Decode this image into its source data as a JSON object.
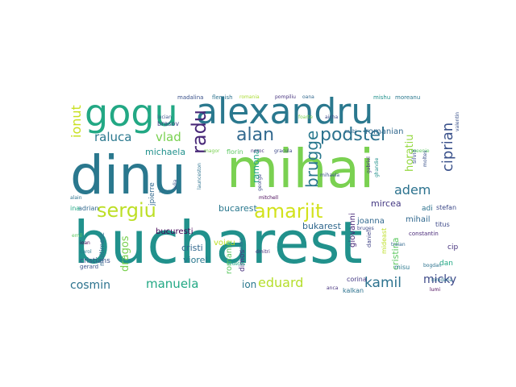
{
  "words": [
    {
      "text": "bucharest",
      "color": "#21918c"
    },
    {
      "text": "mihai",
      "color": "#7ad151"
    },
    {
      "text": "dinu",
      "color": "#2a788e"
    },
    {
      "text": "alexandru",
      "color": "#2a788e"
    },
    {
      "text": "gogu",
      "color": "#22a884"
    },
    {
      "text": "sergiu",
      "color": "#bddf26"
    },
    {
      "text": "amarjit",
      "color": "#d2e21b"
    },
    {
      "text": "podstel",
      "color": "#2c728e"
    },
    {
      "text": "alan",
      "color": "#31688e"
    },
    {
      "text": "radu",
      "color": "#482878"
    },
    {
      "text": "brugge",
      "color": "#2a788e"
    },
    {
      "text": "ionut",
      "color": "#c8e020"
    },
    {
      "text": "ciprian",
      "color": "#3b528b"
    },
    {
      "text": "raluca",
      "color": "#2a788e"
    },
    {
      "text": "vlad",
      "color": "#7ad151"
    },
    {
      "text": "eduard",
      "color": "#b5de2b"
    },
    {
      "text": "kamil",
      "color": "#2c728e"
    },
    {
      "text": "adem",
      "color": "#2c728e"
    },
    {
      "text": "manuela",
      "color": "#22a884"
    },
    {
      "text": "cosmin",
      "color": "#2c728e"
    },
    {
      "text": "horatiu",
      "color": "#95d840"
    },
    {
      "text": "micky",
      "color": "#3e4a89"
    },
    {
      "text": "michaela",
      "color": "#21918c"
    },
    {
      "text": "dragos",
      "color": "#7ad151"
    },
    {
      "text": "bucarest",
      "color": "#2a788e"
    },
    {
      "text": "bukarest",
      "color": "#31688e"
    },
    {
      "text": "joanna",
      "color": "#31688e"
    },
    {
      "text": "mircea",
      "color": "#443983"
    },
    {
      "text": "ramona",
      "color": "#20a386"
    },
    {
      "text": "romanian",
      "color": "#31688e"
    },
    {
      "text": "cristina",
      "color": "#5ec962"
    },
    {
      "text": "ion",
      "color": "#2a788e"
    },
    {
      "text": "cristi",
      "color": "#31688e"
    },
    {
      "text": "bucuresti",
      "color": "#440154"
    },
    {
      "text": "viorel",
      "color": "#2a788e"
    },
    {
      "text": "voicu",
      "color": "#bddf26"
    },
    {
      "text": "romania",
      "color": "#5ec962"
    },
    {
      "text": "giovanni",
      "color": "#482878"
    },
    {
      "text": "mihail",
      "color": "#31688e"
    },
    {
      "text": "kalkan",
      "color": "#2c728e"
    },
    {
      "text": "corina",
      "color": "#443983"
    },
    {
      "text": "cristians",
      "color": "#3b528b"
    },
    {
      "text": "adi",
      "color": "#2c728e"
    },
    {
      "text": "stefan",
      "color": "#3e4a89"
    },
    {
      "text": "dan",
      "color": "#22a884"
    },
    {
      "text": "cip",
      "color": "#46327e"
    },
    {
      "text": "misu",
      "color": "#2a788e"
    },
    {
      "text": "adrian",
      "color": "#31688e"
    },
    {
      "text": "florin",
      "color": "#5ec962"
    },
    {
      "text": "jpierre",
      "color": "#31688e"
    },
    {
      "text": "ina",
      "color": "#22a884"
    },
    {
      "text": "brasov",
      "color": "#414487"
    },
    {
      "text": "madalina",
      "color": "#3b528b"
    },
    {
      "text": "flemish",
      "color": "#2c728e"
    },
    {
      "text": "romania",
      "color": "#aadc32"
    },
    {
      "text": "pompiliu",
      "color": "#46327e"
    },
    {
      "text": "oana",
      "color": "#31688e"
    },
    {
      "text": "mishu",
      "color": "#21918c"
    },
    {
      "text": "moreanu",
      "color": "#2a788e"
    },
    {
      "text": "titus",
      "color": "#3e4a89"
    },
    {
      "text": "dimos",
      "color": "#472f7d"
    },
    {
      "text": "multimesc",
      "color": "#31688e"
    },
    {
      "text": "mideast",
      "color": "#bddf26"
    },
    {
      "text": "daniel",
      "color": "#414487"
    },
    {
      "text": "gerard",
      "color": "#3b528b"
    },
    {
      "text": "silvia",
      "color": "#3b528b"
    },
    {
      "text": "aicha",
      "color": "#3e4a89"
    },
    {
      "text": "casbi",
      "color": "#31688e"
    },
    {
      "text": "noroc",
      "color": "#46327e"
    },
    {
      "text": "gracula",
      "color": "#3e4a89"
    },
    {
      "text": "valentin",
      "color": "#3b528b"
    },
    {
      "text": "alexandra",
      "color": "#31688e"
    },
    {
      "text": "george",
      "color": "#3e4a89"
    },
    {
      "text": "foarte",
      "color": "#7ad151"
    },
    {
      "text": "lucian",
      "color": "#3b528b"
    },
    {
      "text": "alain",
      "color": "#2c728e"
    },
    {
      "text": "fruetos",
      "color": "#22a884"
    },
    {
      "text": "dmitri",
      "color": "#472d7b"
    },
    {
      "text": "carol",
      "color": "#2a788e"
    },
    {
      "text": "constantin",
      "color": "#482878"
    },
    {
      "text": "mitchell",
      "color": "#440154"
    },
    {
      "text": "bruges",
      "color": "#3e4a89"
    },
    {
      "text": "roeenie",
      "color": "#5ec962"
    },
    {
      "text": "gabriel",
      "color": "#46327e"
    },
    {
      "text": "mihaela",
      "color": "#3b528b"
    },
    {
      "text": "magor",
      "color": "#7ad151"
    },
    {
      "text": "alina",
      "color": "#2c728e"
    },
    {
      "text": "launceston",
      "color": "#2c728e"
    },
    {
      "text": "emil",
      "color": "#5ec962"
    },
    {
      "text": "bogdan",
      "color": "#2c728e"
    },
    {
      "text": "iulia",
      "color": "#3b528b"
    },
    {
      "text": "anca",
      "color": "#46327e"
    },
    {
      "text": "ghandie",
      "color": "#21918c"
    },
    {
      "text": "moltes",
      "color": "#3b528b"
    },
    {
      "text": "ioan",
      "color": "#440154"
    },
    {
      "text": "loredana",
      "color": "#2c728e"
    },
    {
      "text": "traian",
      "color": "#31688e"
    },
    {
      "text": "lumi",
      "color": "#440154"
    }
  ]
}
